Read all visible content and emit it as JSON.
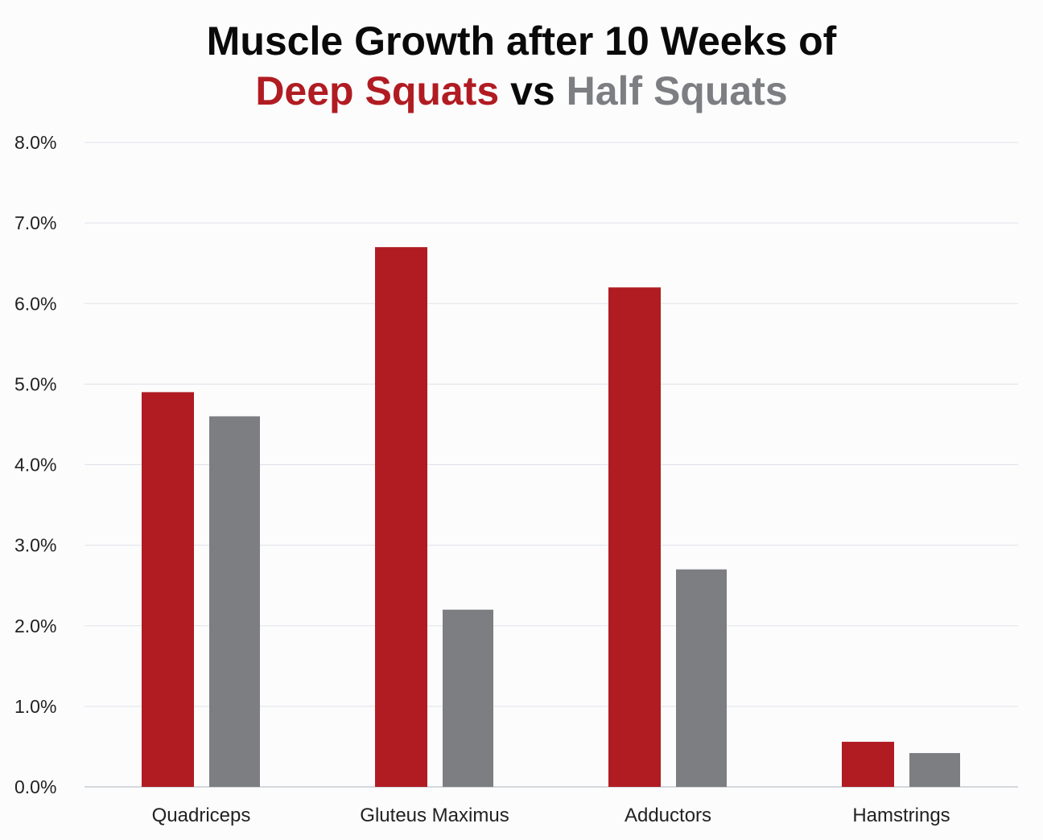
{
  "chart_data": {
    "type": "bar",
    "title_line1": "Muscle Growth after 10 Weeks of",
    "title_line2": {
      "deep": "Deep Squats",
      "vs": "vs",
      "half": "Half Squats"
    },
    "categories": [
      "Quadriceps",
      "Gluteus Maximus",
      "Adductors",
      "Hamstrings"
    ],
    "series": [
      {
        "name": "Deep Squats",
        "color": "#b01c22",
        "values": [
          4.9,
          6.7,
          6.2,
          0.56
        ]
      },
      {
        "name": "Half Squats",
        "color": "#7d7e82",
        "values": [
          4.6,
          2.2,
          2.7,
          0.42
        ]
      }
    ],
    "ylim": [
      0,
      8
    ],
    "yticks": [
      "0.0%",
      "1.0%",
      "2.0%",
      "3.0%",
      "4.0%",
      "5.0%",
      "6.0%",
      "7.0%",
      "8.0%"
    ],
    "xlabel": "",
    "ylabel": "",
    "grid": true
  }
}
